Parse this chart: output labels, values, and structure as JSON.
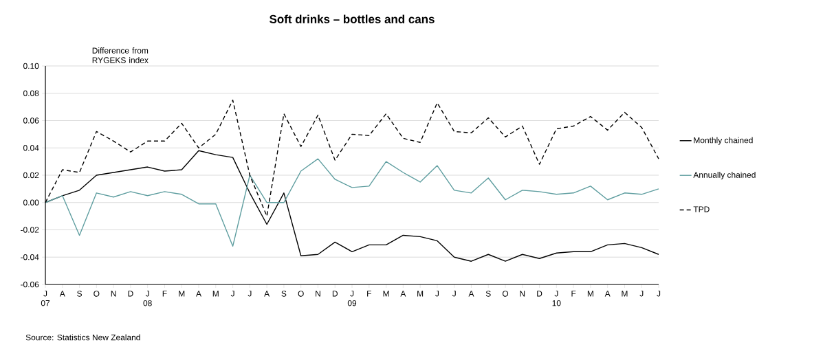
{
  "chart_data": {
    "type": "line",
    "title": "Soft drinks – bottles and cans",
    "ylabel": "Difference from RYGEKS index",
    "annotations": [
      "Source: Statistics New Zealand"
    ],
    "categories": [
      "J 07",
      "A",
      "S",
      "O",
      "N",
      "D",
      "J 08",
      "F",
      "M",
      "A",
      "M",
      "J",
      "J",
      "A",
      "S",
      "O",
      "N",
      "D",
      "J 09",
      "F",
      "M",
      "A",
      "M",
      "J",
      "J",
      "A",
      "S",
      "O",
      "N",
      "D",
      "J 10",
      "F",
      "M",
      "A",
      "M",
      "J",
      "J"
    ],
    "series": [
      {
        "name": "Monthly chained",
        "color": "#000000",
        "line_style": "solid",
        "values": [
          0.0,
          0.005,
          0.009,
          0.02,
          0.022,
          0.024,
          0.026,
          0.023,
          0.024,
          0.038,
          0.035,
          0.033,
          0.007,
          -0.016,
          0.007,
          -0.039,
          -0.038,
          -0.029,
          -0.036,
          -0.031,
          -0.031,
          -0.024,
          -0.025,
          -0.028,
          -0.04,
          -0.043,
          -0.038,
          -0.043,
          -0.038,
          -0.041,
          -0.037,
          -0.036,
          -0.036,
          -0.031,
          -0.03,
          -0.033,
          -0.038
        ]
      },
      {
        "name": "Annually chained",
        "color": "#5f9ea0",
        "line_style": "solid",
        "values": [
          0.0,
          0.005,
          -0.024,
          0.007,
          0.004,
          0.008,
          0.005,
          0.008,
          0.006,
          -0.001,
          -0.001,
          -0.032,
          0.02,
          0.0,
          0.0,
          0.023,
          0.032,
          0.017,
          0.011,
          0.012,
          0.03,
          0.022,
          0.015,
          0.027,
          0.009,
          0.007,
          0.018,
          0.002,
          0.009,
          0.008,
          0.006,
          0.007,
          0.012,
          0.002,
          0.007,
          0.006,
          0.01
        ]
      },
      {
        "name": "TPD",
        "color": "#000000",
        "line_style": "dashed",
        "values": [
          0.0,
          0.024,
          0.022,
          0.052,
          0.045,
          0.037,
          0.045,
          0.045,
          0.058,
          0.04,
          0.05,
          0.075,
          0.02,
          -0.01,
          0.065,
          0.041,
          0.064,
          0.031,
          0.05,
          0.049,
          0.065,
          0.047,
          0.044,
          0.073,
          0.052,
          0.051,
          0.062,
          0.048,
          0.056,
          0.028,
          0.054,
          0.056,
          0.063,
          0.053,
          0.066,
          0.055,
          0.032
        ]
      }
    ],
    "ylim": [
      -0.06,
      0.1
    ],
    "yticks": [
      {
        "value": -0.06,
        "label": "-0.06"
      },
      {
        "value": -0.04,
        "label": "-0.04"
      },
      {
        "value": -0.02,
        "label": "-0.02"
      },
      {
        "value": 0,
        "label": "0.00"
      },
      {
        "value": 0.02,
        "label": "0.02"
      },
      {
        "value": 0.04,
        "label": "0.04"
      },
      {
        "value": 0.06,
        "label": "0.06"
      },
      {
        "value": 0.08,
        "label": "0.08"
      },
      {
        "value": 0.1,
        "label": "0.10"
      }
    ],
    "grid": "y",
    "legend": "right",
    "marker": "none"
  }
}
